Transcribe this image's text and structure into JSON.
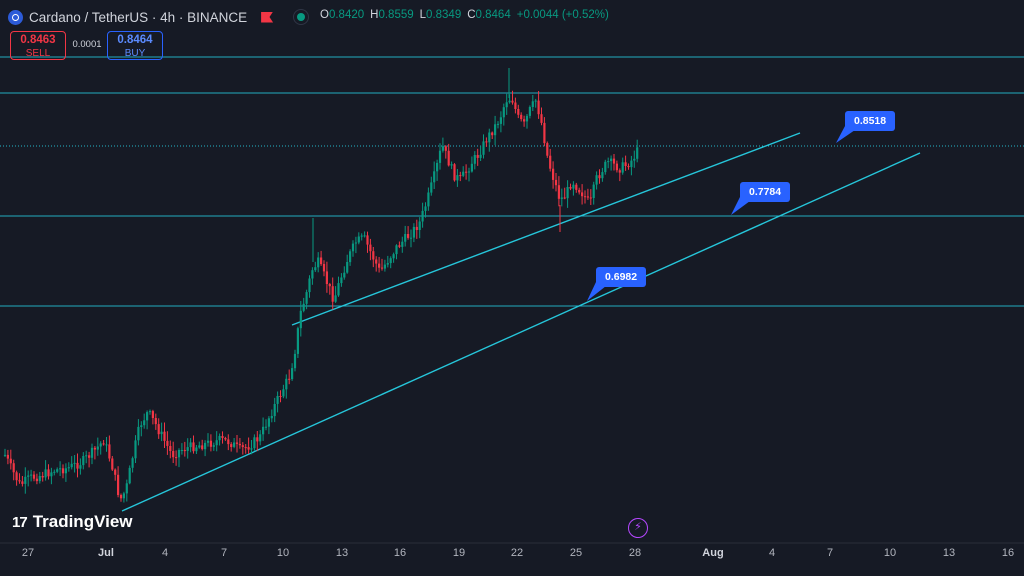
{
  "header": {
    "symbol": "Cardano / TetherUS · 4h · BINANCE",
    "ohlc": {
      "o_label": "O",
      "o": "0.8420",
      "h_label": "H",
      "h": "0.8559",
      "l_label": "L",
      "l": "0.8349",
      "c_label": "C",
      "c": "0.8464",
      "change": "+0.0044 (+0.52%)"
    }
  },
  "trade": {
    "sell_price": "0.8463",
    "sell_label": "SELL",
    "spread": "0.0001",
    "buy_price": "0.8464",
    "buy_label": "BUY"
  },
  "logo": {
    "text": "TradingView",
    "mark": "17"
  },
  "annotations": [
    "0.8518",
    "0.7784",
    "0.6982"
  ],
  "x_axis": [
    "27",
    "Jul",
    "4",
    "7",
    "10",
    "13",
    "16",
    "19",
    "22",
    "25",
    "28",
    "Aug",
    "4",
    "7",
    "10",
    "13",
    "16"
  ],
  "colors": {
    "up": "#089981",
    "down": "#f23645",
    "line": "#26c6da",
    "accent": "#2962ff"
  },
  "chart_data": {
    "type": "candlestick",
    "symbol": "ADAUSDT",
    "interval": "4h",
    "horizontal_levels": [
      0.8518,
      0.7784,
      0.6982
    ],
    "last_candle": {
      "open": 0.842,
      "high": 0.8559,
      "low": 0.8349,
      "close": 0.8464
    }
  }
}
